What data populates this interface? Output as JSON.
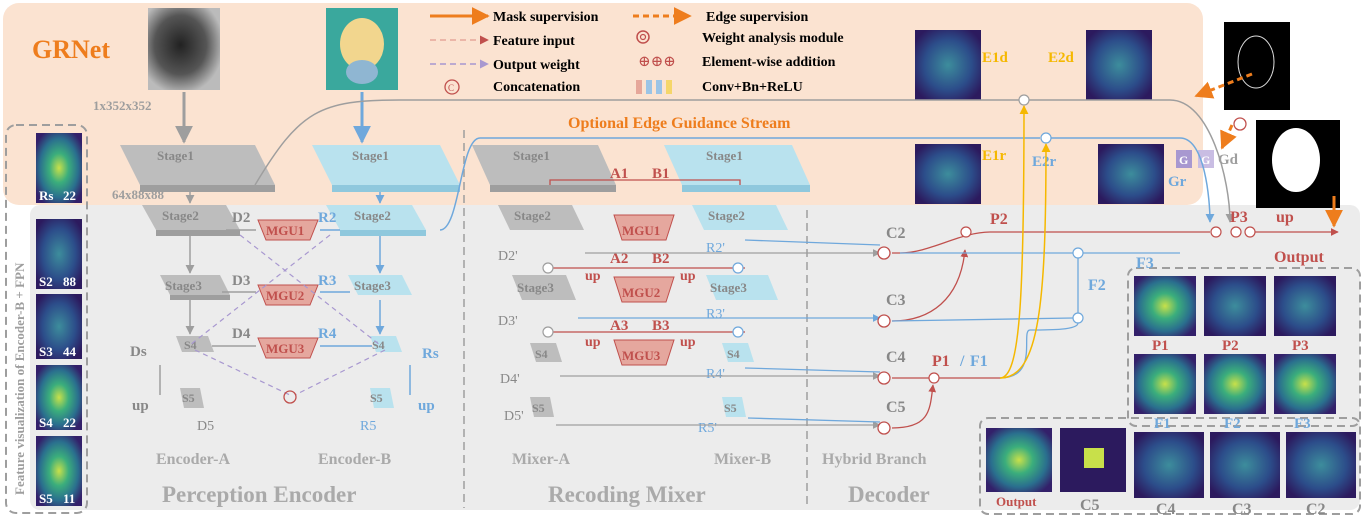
{
  "title": "GRNet",
  "legend": {
    "mask_supervision": "Mask supervision",
    "edge_supervision": "Edge supervision",
    "feature_input": "Feature input",
    "output_weight": "Output weight",
    "concatenation": "Concatenation",
    "weight_analysis": "Weight analysis module",
    "element_wise": "Element-wise addition",
    "conv_bn_relu": "Conv+Bn+ReLU",
    "concat_symbol": "C",
    "plus_symbols": "⊕⊕⊕"
  },
  "input_size": "1x352x352",
  "feature_size": "64x88x88",
  "optional_stream": "Optional Edge Guidance Stream",
  "side_panel_label": "Feature visualization of Encoder-B + FPN",
  "side_maps": [
    {
      "name": "Rs",
      "size": "22"
    },
    {
      "name": "S2",
      "size": "88"
    },
    {
      "name": "S3",
      "size": "44"
    },
    {
      "name": "S4",
      "size": "22"
    },
    {
      "name": "S5",
      "size": "11"
    }
  ],
  "stages": {
    "s1": "Stage1",
    "s2": "Stage2",
    "s3": "Stage3",
    "s4": "S4",
    "s5": "S5"
  },
  "encoder_labels": {
    "d2": "D2",
    "d3": "D3",
    "d4": "D4",
    "d5": "D5",
    "ds": "Ds",
    "r2": "R2",
    "r3": "R3",
    "r4": "R4",
    "r5": "R5",
    "rs": "Rs",
    "up": "up",
    "mgu1": "MGU1",
    "mgu2": "MGU2",
    "mgu3": "MGU3"
  },
  "mixer_labels": {
    "a1": "A1",
    "b1": "B1",
    "a2": "A2",
    "b2": "B2",
    "a3": "A3",
    "b3": "B3",
    "d2p": "D2'",
    "d3p": "D3'",
    "d4p": "D4'",
    "d5p": "D5'",
    "r2p": "R2'",
    "r3p": "R3'",
    "r4p": "R4'",
    "r5p": "R5'",
    "up": "up"
  },
  "decoder_labels": {
    "c2": "C2",
    "c3": "C3",
    "c4": "C4",
    "c5": "C5",
    "p1f1": "P1 / F1",
    "p1": "P1",
    "slash": "/",
    "f1": "F1",
    "p2": "P2",
    "p3": "P3",
    "f2": "F2",
    "f3": "F3",
    "up": "up",
    "output": "Output",
    "e1d": "E1d",
    "e2d": "E2d",
    "e1r": "E1r",
    "e2r": "E2r",
    "gr": "Gr",
    "gd": "Gd",
    "g": "G"
  },
  "module_titles": {
    "encoder_a": "Encoder-A",
    "encoder_b": "Encoder-B",
    "mixer_a": "Mixer-A",
    "mixer_b": "Mixer-B",
    "hybrid": "Hybrid Branch",
    "perception": "Perception Encoder",
    "recoding": "Recoding Mixer",
    "decoder": "Decoder"
  },
  "right_maps": {
    "row1": [
      "P1",
      "P2",
      "P3"
    ],
    "row2": [
      "F1",
      "F2",
      "F3"
    ],
    "bottom": [
      "Output",
      "C5",
      "C4",
      "C3",
      "C2"
    ]
  },
  "colors": {
    "orange": "#ee7d1d",
    "red": "#c0504d",
    "blue": "#6fa8dc",
    "gray": "#9e9e9e",
    "yellow": "#f5b800",
    "purple": "#a898d0",
    "peach_bg": "#fbe3d1",
    "gray_bg": "#ececec",
    "mgu_fill": "#e5a79e",
    "cyan_block": "#b9e2ee"
  }
}
